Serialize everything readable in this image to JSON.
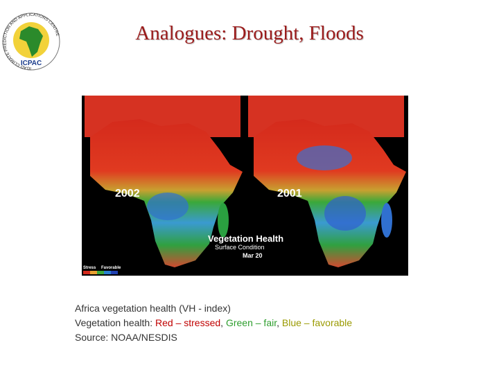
{
  "header": {
    "title": "Analogues: Drought, Floods",
    "logo": {
      "text": "ICPAC",
      "ring_text": "IGAD CLIMATE PREDICTION AND APPLICATIONS CENTRE"
    }
  },
  "figure": {
    "left_year": "2002",
    "right_year": "2001",
    "heading": "Vegetation Health",
    "subheading": "Surface Condition",
    "date": "Mar 20",
    "scale_low": "Stress",
    "scale_high": "Favorable"
  },
  "caption": {
    "line1": "Africa vegetation health (VH - index)",
    "line2": {
      "lead": "Vegetation health: ",
      "red": "Red – stressed",
      "sep1": ", ",
      "green": "Green – fair",
      "sep2": ", ",
      "blue": "Blue – favorable"
    },
    "line3": "Source: NOAA/NESDIS"
  }
}
